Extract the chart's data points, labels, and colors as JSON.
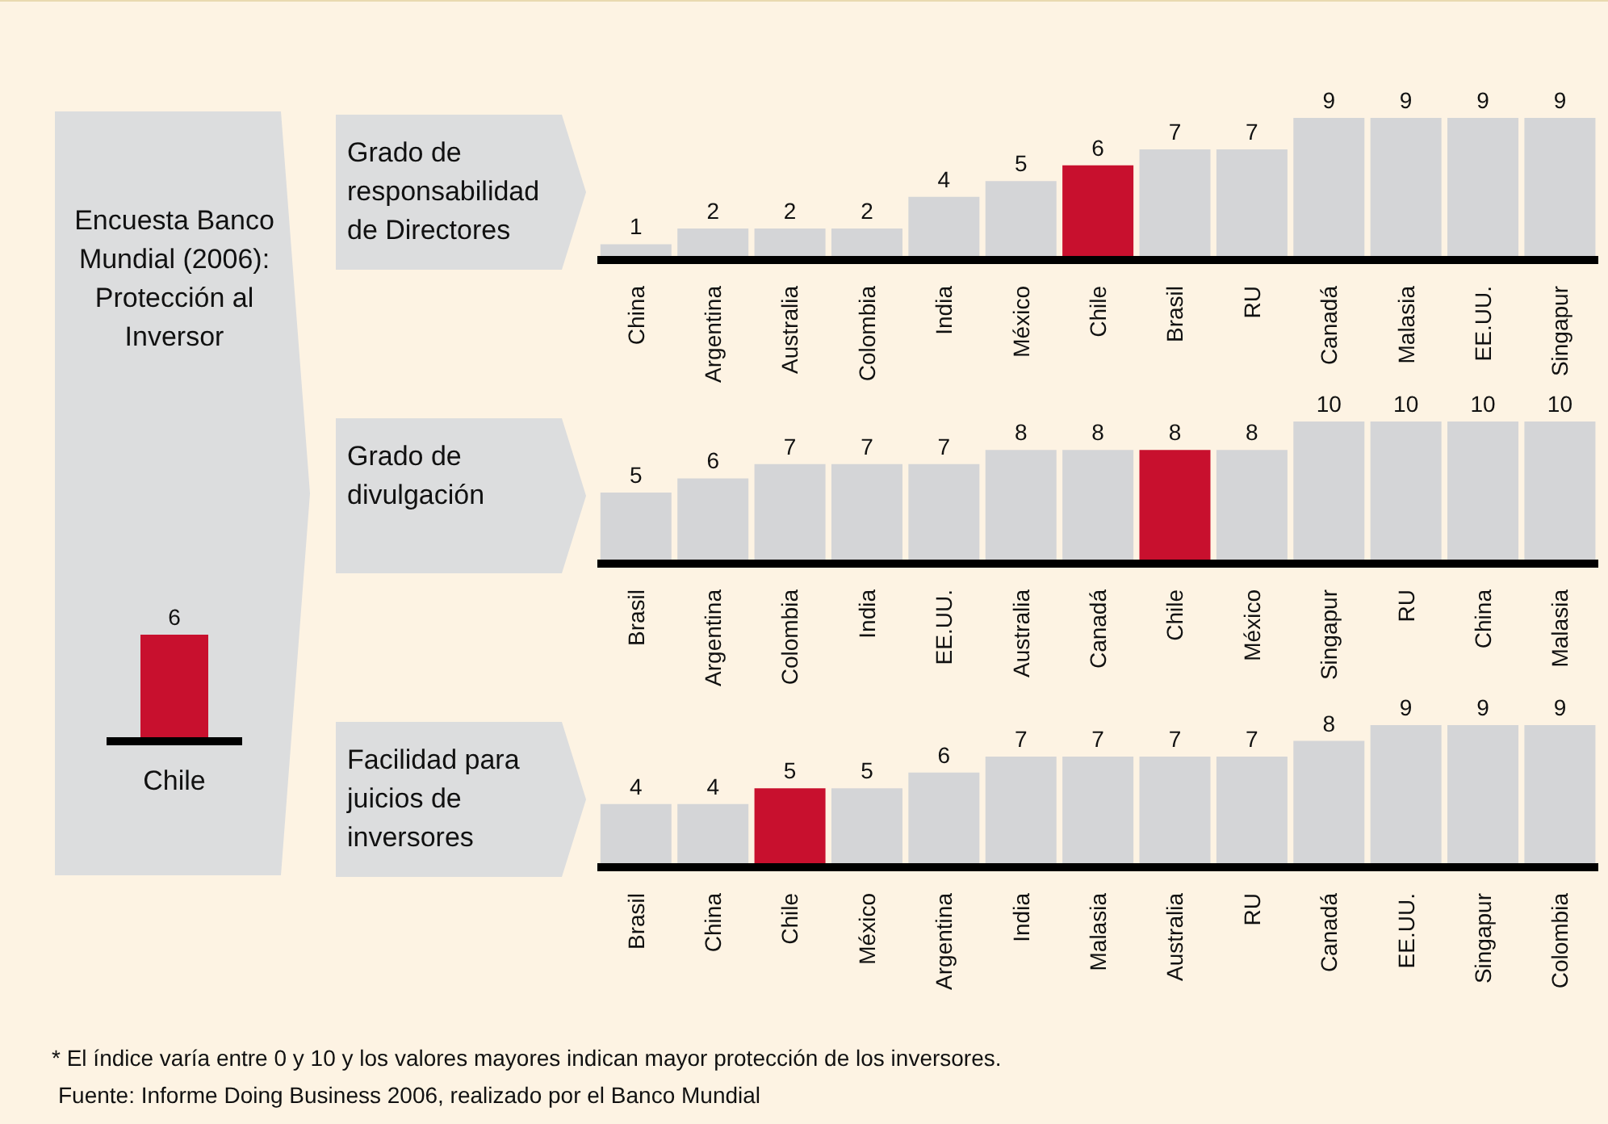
{
  "chart_data": [
    {
      "type": "bar",
      "title": "Encuesta Banco Mundial (2006): Protección al Inversor",
      "categories": [
        "Chile"
      ],
      "values": [
        6
      ],
      "colors": [
        "#c8102e"
      ],
      "data_labels": true
    },
    {
      "type": "bar",
      "title": "Grado de responsabilidad de Directores",
      "categories": [
        "China",
        "Argentina",
        "Australia",
        "Colombia",
        "India",
        "México",
        "Chile",
        "Brasil",
        "RU",
        "Canadá",
        "Malasia",
        "EE.UU.",
        "Singapur"
      ],
      "values": [
        1,
        2,
        2,
        2,
        4,
        5,
        6,
        7,
        7,
        9,
        9,
        9,
        9
      ],
      "colors": [
        "#d4d5d7",
        "#d4d5d7",
        "#d4d5d7",
        "#d4d5d7",
        "#d4d5d7",
        "#d4d5d7",
        "#c8102e",
        "#d4d5d7",
        "#d4d5d7",
        "#d4d5d7",
        "#d4d5d7",
        "#d4d5d7",
        "#d4d5d7"
      ],
      "data_labels": true
    },
    {
      "type": "bar",
      "title": "Grado de divulgación",
      "categories": [
        "Brasil",
        "Argentina",
        "Colombia",
        "India",
        "EE.UU.",
        "Australia",
        "Canadá",
        "Chile",
        "México",
        "Singapur",
        "RU",
        "China",
        "Malasia"
      ],
      "values": [
        5,
        6,
        7,
        7,
        7,
        8,
        8,
        8,
        8,
        10,
        10,
        10,
        10
      ],
      "colors": [
        "#d4d5d7",
        "#d4d5d7",
        "#d4d5d7",
        "#d4d5d7",
        "#d4d5d7",
        "#d4d5d7",
        "#d4d5d7",
        "#c8102e",
        "#d4d5d7",
        "#d4d5d7",
        "#d4d5d7",
        "#d4d5d7",
        "#d4d5d7"
      ],
      "data_labels": true
    },
    {
      "type": "bar",
      "title": "Facilidad para juicios de inversores",
      "categories": [
        "Brasil",
        "China",
        "Chile",
        "México",
        "Argentina",
        "India",
        "Malasia",
        "Australia",
        "RU",
        "Canadá",
        "EE.UU.",
        "Singapur",
        "Colombia"
      ],
      "values": [
        4,
        4,
        5,
        5,
        6,
        7,
        7,
        7,
        7,
        8,
        9,
        9,
        9
      ],
      "colors": [
        "#d4d5d7",
        "#d4d5d7",
        "#c8102e",
        "#d4d5d7",
        "#d4d5d7",
        "#d4d5d7",
        "#d4d5d7",
        "#d4d5d7",
        "#d4d5d7",
        "#d4d5d7",
        "#d4d5d7",
        "#d4d5d7",
        "#d4d5d7"
      ],
      "data_labels": true,
      "annotations": [
        "* El índice varía entre 0 y 10 y los valores mayores indican mayor protección de los inversores.",
        "Fuente: Informe Doing Business 2006, realizado por el Banco Mundial"
      ]
    }
  ]
}
